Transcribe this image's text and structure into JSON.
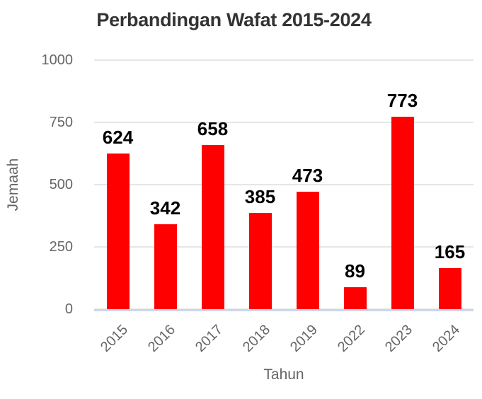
{
  "chart_data": {
    "type": "bar",
    "title": "Perbandingan Wafat 2015-2024",
    "categories": [
      "2015",
      "2016",
      "2017",
      "2018",
      "2019",
      "2022",
      "2023",
      "2024"
    ],
    "values": [
      624,
      342,
      658,
      385,
      473,
      89,
      773,
      165
    ],
    "xlabel": "Tahun",
    "ylabel": "Jemaah",
    "ylim": [
      0,
      1000
    ],
    "yticks": [
      0,
      250,
      500,
      750,
      1000
    ],
    "grid": true,
    "legend": "none",
    "data_labels_visible": true,
    "colors": {
      "bar": "#ff0000",
      "title_text": "#333333",
      "axis_text": "#666666",
      "data_label_text": "#000000",
      "gridline": "#e6e6e6",
      "axis_line": "#ccd6eb",
      "background": "#ffffff"
    }
  }
}
